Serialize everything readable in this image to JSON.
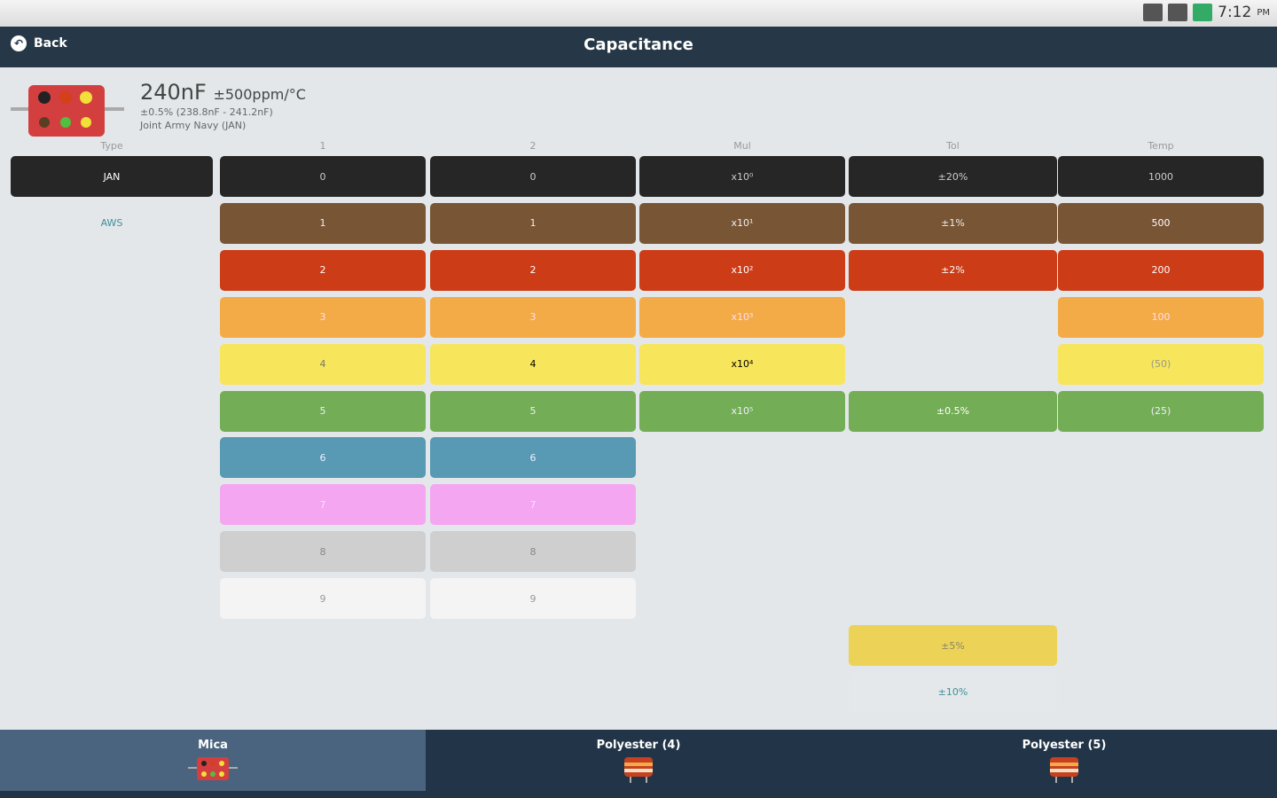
{
  "status": {
    "time": "7:12",
    "ampm": "PM"
  },
  "header": {
    "back_label": "Back",
    "title": "Capacitance"
  },
  "summary": {
    "value": "240nF",
    "tempco": "±500ppm/°C",
    "tolerance": "±0.5%  (238.8nF - 241.2nF)",
    "type": "Joint Army Navy (JAN)"
  },
  "columns": [
    {
      "header": "Type",
      "cells": [
        {
          "label": "JAN",
          "color": "#262626",
          "text": "#ffffff"
        },
        {
          "label": "AWS",
          "color": "#e3e7ea",
          "text": "#3f8f9a"
        }
      ]
    },
    {
      "header": "1",
      "cells": [
        {
          "label": "0",
          "color": "#262626",
          "text": "#ccc"
        },
        {
          "label": "1",
          "color": "#785535",
          "text": "#eee"
        },
        {
          "label": "2",
          "color": "#cc3c17",
          "text": "#fff"
        },
        {
          "label": "3",
          "color": "#f3ab48",
          "text": "#fde"
        },
        {
          "label": "4",
          "color": "#f7e55c",
          "text": "#776"
        },
        {
          "label": "5",
          "color": "#73ad55",
          "text": "#eef"
        },
        {
          "label": "6",
          "color": "#5899b4",
          "text": "#eef"
        },
        {
          "label": "7",
          "color": "#f4a6f0",
          "text": "#fdf"
        },
        {
          "label": "8",
          "color": "#cfcfcf",
          "text": "#888"
        },
        {
          "label": "9",
          "color": "#f4f4f4",
          "text": "#999"
        }
      ]
    },
    {
      "header": "2",
      "cells": [
        {
          "label": "0",
          "color": "#262626",
          "text": "#ccc"
        },
        {
          "label": "1",
          "color": "#785535",
          "text": "#eee"
        },
        {
          "label": "2",
          "color": "#cc3c17",
          "text": "#fff"
        },
        {
          "label": "3",
          "color": "#f3ab48",
          "text": "#fde"
        },
        {
          "label": "4",
          "color": "#f7e55c",
          "text": "#000"
        },
        {
          "label": "5",
          "color": "#73ad55",
          "text": "#eef"
        },
        {
          "label": "6",
          "color": "#5899b4",
          "text": "#eef"
        },
        {
          "label": "7",
          "color": "#f4a6f0",
          "text": "#fdf"
        },
        {
          "label": "8",
          "color": "#cfcfcf",
          "text": "#888"
        },
        {
          "label": "9",
          "color": "#f4f4f4",
          "text": "#999"
        }
      ]
    },
    {
      "header": "Mul",
      "cells": [
        {
          "label": "x10⁰",
          "color": "#262626",
          "text": "#ccc"
        },
        {
          "label": "x10¹",
          "color": "#785535",
          "text": "#eee"
        },
        {
          "label": "x10²",
          "color": "#cc3c17",
          "text": "#fff"
        },
        {
          "label": "x10³",
          "color": "#f3ab48",
          "text": "#fde"
        },
        {
          "label": "x10⁴",
          "color": "#f7e55c",
          "text": "#000"
        },
        {
          "label": "x10⁵",
          "color": "#73ad55",
          "text": "#eef"
        }
      ]
    },
    {
      "header": "Tol",
      "cells": [
        {
          "label": "±20%",
          "color": "#262626",
          "text": "#ccc"
        },
        {
          "label": "±1%",
          "color": "#785535",
          "text": "#eee"
        },
        {
          "label": "±2%",
          "color": "#cc3c17",
          "text": "#fff"
        },
        null,
        null,
        {
          "label": "±0.5%",
          "color": "#73ad55",
          "text": "#fff"
        },
        null,
        null,
        null,
        null,
        {
          "label": "±5%",
          "color": "#ecd257",
          "text": "#886"
        },
        {
          "label": "±10%",
          "color": "#e5e8ea",
          "text": "#3f8f9a"
        }
      ]
    },
    {
      "header": "Temp",
      "cells": [
        {
          "label": "1000",
          "color": "#262626",
          "text": "#ccc"
        },
        {
          "label": "500",
          "color": "#785535",
          "text": "#fff"
        },
        {
          "label": "200",
          "color": "#cc3c17",
          "text": "#fff"
        },
        {
          "label": "100",
          "color": "#f3ab48",
          "text": "#fde"
        },
        {
          "label": "(50)",
          "color": "#f7e55c",
          "text": "#998"
        },
        {
          "label": "(25)",
          "color": "#73ad55",
          "text": "#eef"
        }
      ]
    }
  ],
  "tabs": [
    {
      "label": "Mica",
      "active": true
    },
    {
      "label": "Polyester (4)",
      "active": false
    },
    {
      "label": "Polyester (5)",
      "active": false
    }
  ]
}
